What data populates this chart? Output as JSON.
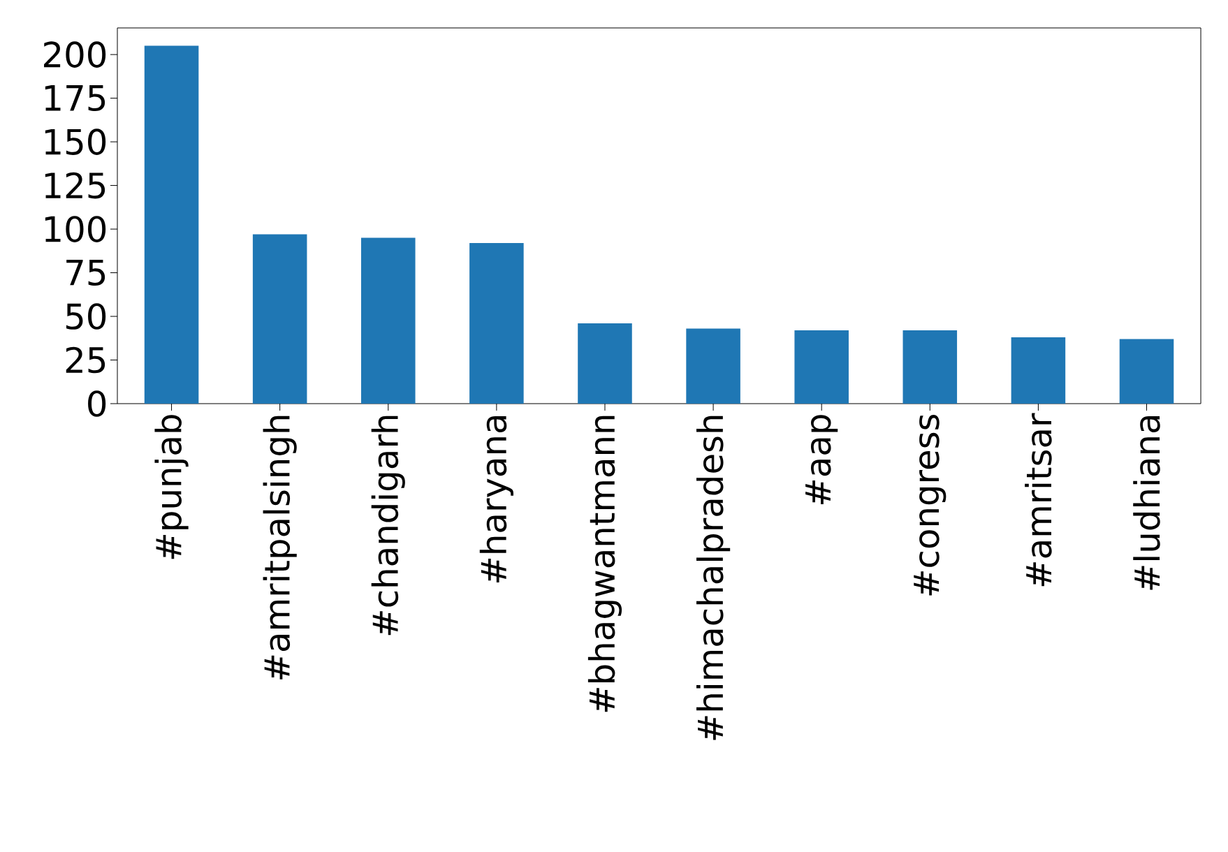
{
  "chart_data": {
    "type": "bar",
    "categories": [
      "#punjab",
      "#amritpalsingh",
      "#chandigarh",
      "#haryana",
      "#bhagwantmann",
      "#himachalpradesh",
      "#aap",
      "#congress",
      "#amritsar",
      "#ludhiana"
    ],
    "values": [
      205,
      97,
      95,
      92,
      46,
      43,
      42,
      42,
      38,
      37
    ],
    "color": "#1f77b4",
    "ylim": [
      0,
      215.25
    ],
    "yticks": [
      0,
      25,
      50,
      75,
      100,
      125,
      150,
      175,
      200
    ],
    "grid": false
  }
}
